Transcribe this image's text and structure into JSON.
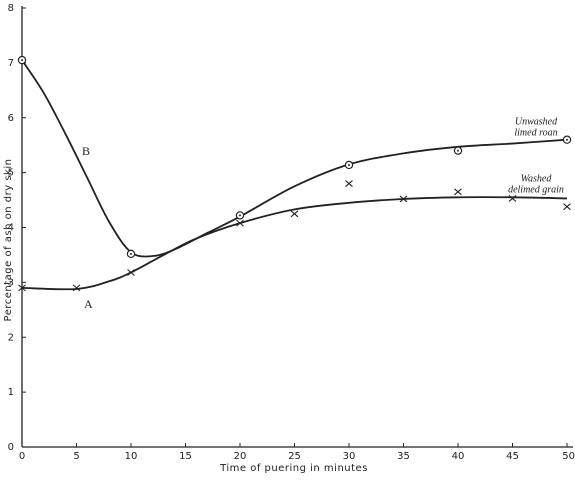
{
  "chart_data": {
    "type": "line",
    "x_label": "Time of puering in minutes",
    "y_label": "Percentage of ash on dry skin",
    "xlim": [
      0,
      50
    ],
    "xticks": [
      0,
      5,
      10,
      15,
      20,
      25,
      30,
      35,
      40,
      45,
      50
    ],
    "ylim": [
      0,
      8
    ],
    "yticks": [
      0,
      1,
      2,
      3,
      4,
      5,
      6,
      7,
      8
    ],
    "grid": false,
    "series": [
      {
        "name": [
          "Unwashed",
          "limed roan"
        ],
        "label": "B",
        "marker": "circle",
        "color": "#222",
        "x": [
          0,
          10,
          20,
          30,
          40,
          50
        ],
        "values": [
          7.05,
          3.52,
          4.22,
          5.14,
          5.4,
          5.6
        ],
        "curve": {
          "x": [
            0,
            2,
            4,
            6,
            8,
            10,
            12,
            14,
            17,
            20,
            25,
            30,
            35,
            40,
            45,
            50
          ],
          "values": [
            7.05,
            6.45,
            5.7,
            4.9,
            4.1,
            3.55,
            3.48,
            3.6,
            3.9,
            4.2,
            4.75,
            5.15,
            5.35,
            5.47,
            5.53,
            5.6
          ]
        }
      },
      {
        "name": [
          "Washed",
          "delimed grain"
        ],
        "label": "A",
        "marker": "cross",
        "color": "#222",
        "x": [
          0,
          5,
          10,
          20,
          25,
          30,
          35,
          40,
          45,
          50
        ],
        "values": [
          2.9,
          2.9,
          3.18,
          4.08,
          4.25,
          4.8,
          4.52,
          4.65,
          4.53,
          4.38
        ],
        "curve": {
          "x": [
            0,
            5,
            8,
            10,
            13,
            16,
            20,
            25,
            30,
            35,
            40,
            45,
            50
          ],
          "values": [
            2.9,
            2.88,
            3.02,
            3.18,
            3.5,
            3.8,
            4.08,
            4.33,
            4.45,
            4.52,
            4.55,
            4.55,
            4.53
          ]
        }
      }
    ]
  }
}
